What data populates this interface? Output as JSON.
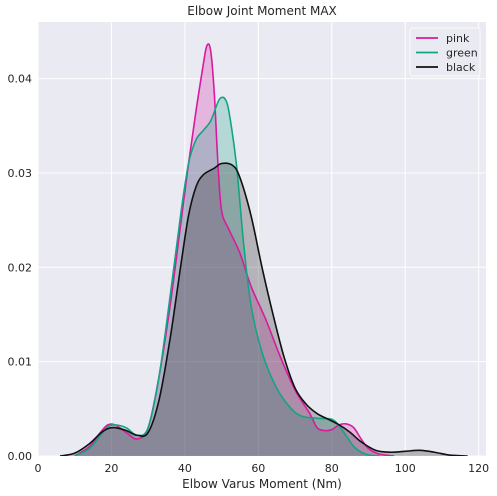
{
  "chart_data": {
    "type": "area",
    "title": "Elbow Joint Moment MAX",
    "xlabel": "Elbow Varus Moment (Nm)",
    "ylabel": "",
    "xlim": [
      0,
      122
    ],
    "ylim": [
      0,
      0.046
    ],
    "xticks": [
      0,
      20,
      40,
      60,
      80,
      100,
      120
    ],
    "xtick_labels": [
      "0",
      "20",
      "40",
      "60",
      "80",
      "100",
      "120"
    ],
    "yticks": [
      0,
      0.01,
      0.02,
      0.03,
      0.04
    ],
    "ytick_labels": [
      "0.00",
      "0.01",
      "0.02",
      "0.03",
      "0.04"
    ],
    "grid": true,
    "legend_position": "top-right",
    "series": [
      {
        "name": "pink",
        "color": "#d81b9e",
        "x": [
          10,
          14,
          17,
          19,
          21,
          24,
          27,
          30,
          33,
          36,
          39,
          41,
          43,
          45,
          46,
          47,
          48,
          49,
          50,
          52,
          55,
          58,
          62,
          66,
          70,
          74,
          76,
          78,
          80,
          82,
          84,
          86,
          88,
          90,
          93,
          97
        ],
        "y": [
          0,
          0.001,
          0.0025,
          0.0033,
          0.0033,
          0.0025,
          0.0018,
          0.003,
          0.0085,
          0.016,
          0.025,
          0.031,
          0.0365,
          0.0415,
          0.0435,
          0.043,
          0.0385,
          0.031,
          0.026,
          0.024,
          0.0215,
          0.018,
          0.0145,
          0.0105,
          0.007,
          0.0045,
          0.003,
          0.0027,
          0.0028,
          0.0033,
          0.0034,
          0.003,
          0.0018,
          0.0008,
          0.0002,
          0
        ]
      },
      {
        "name": "green",
        "color": "#12a584",
        "x": [
          10,
          14,
          17,
          19,
          21,
          24,
          27,
          30,
          33,
          36,
          39,
          41,
          43,
          45,
          47,
          49,
          50,
          51,
          52,
          54,
          56,
          58,
          61,
          65,
          69,
          72,
          76,
          80,
          82,
          84,
          86,
          88,
          90,
          93
        ],
        "y": [
          0,
          0.0008,
          0.0022,
          0.0031,
          0.0033,
          0.003,
          0.0022,
          0.003,
          0.0085,
          0.017,
          0.026,
          0.031,
          0.0335,
          0.0345,
          0.0355,
          0.0375,
          0.038,
          0.0378,
          0.0365,
          0.031,
          0.0225,
          0.016,
          0.011,
          0.0072,
          0.005,
          0.0042,
          0.004,
          0.0039,
          0.0032,
          0.0021,
          0.001,
          0.0004,
          0.0001,
          0
        ]
      },
      {
        "name": "black",
        "color": "#111111",
        "x": [
          6,
          10,
          14,
          17,
          19,
          21,
          24,
          27,
          30,
          33,
          36,
          39,
          41,
          43,
          45,
          48,
          50,
          53,
          55,
          58,
          61,
          64,
          67,
          70,
          73,
          76,
          79,
          82,
          85,
          88,
          92,
          96,
          100,
          104,
          108,
          112,
          117
        ],
        "y": [
          0,
          0.0003,
          0.0013,
          0.0024,
          0.0029,
          0.003,
          0.0027,
          0.0022,
          0.0025,
          0.006,
          0.0125,
          0.0205,
          0.0255,
          0.0285,
          0.0298,
          0.0305,
          0.031,
          0.0308,
          0.0295,
          0.0255,
          0.02,
          0.015,
          0.0105,
          0.0072,
          0.0055,
          0.0045,
          0.0039,
          0.0033,
          0.0025,
          0.0015,
          0.0006,
          0.0004,
          0.0005,
          0.0006,
          0.0004,
          0.0001,
          0
        ]
      }
    ],
    "overlap_color": "#868b93"
  }
}
